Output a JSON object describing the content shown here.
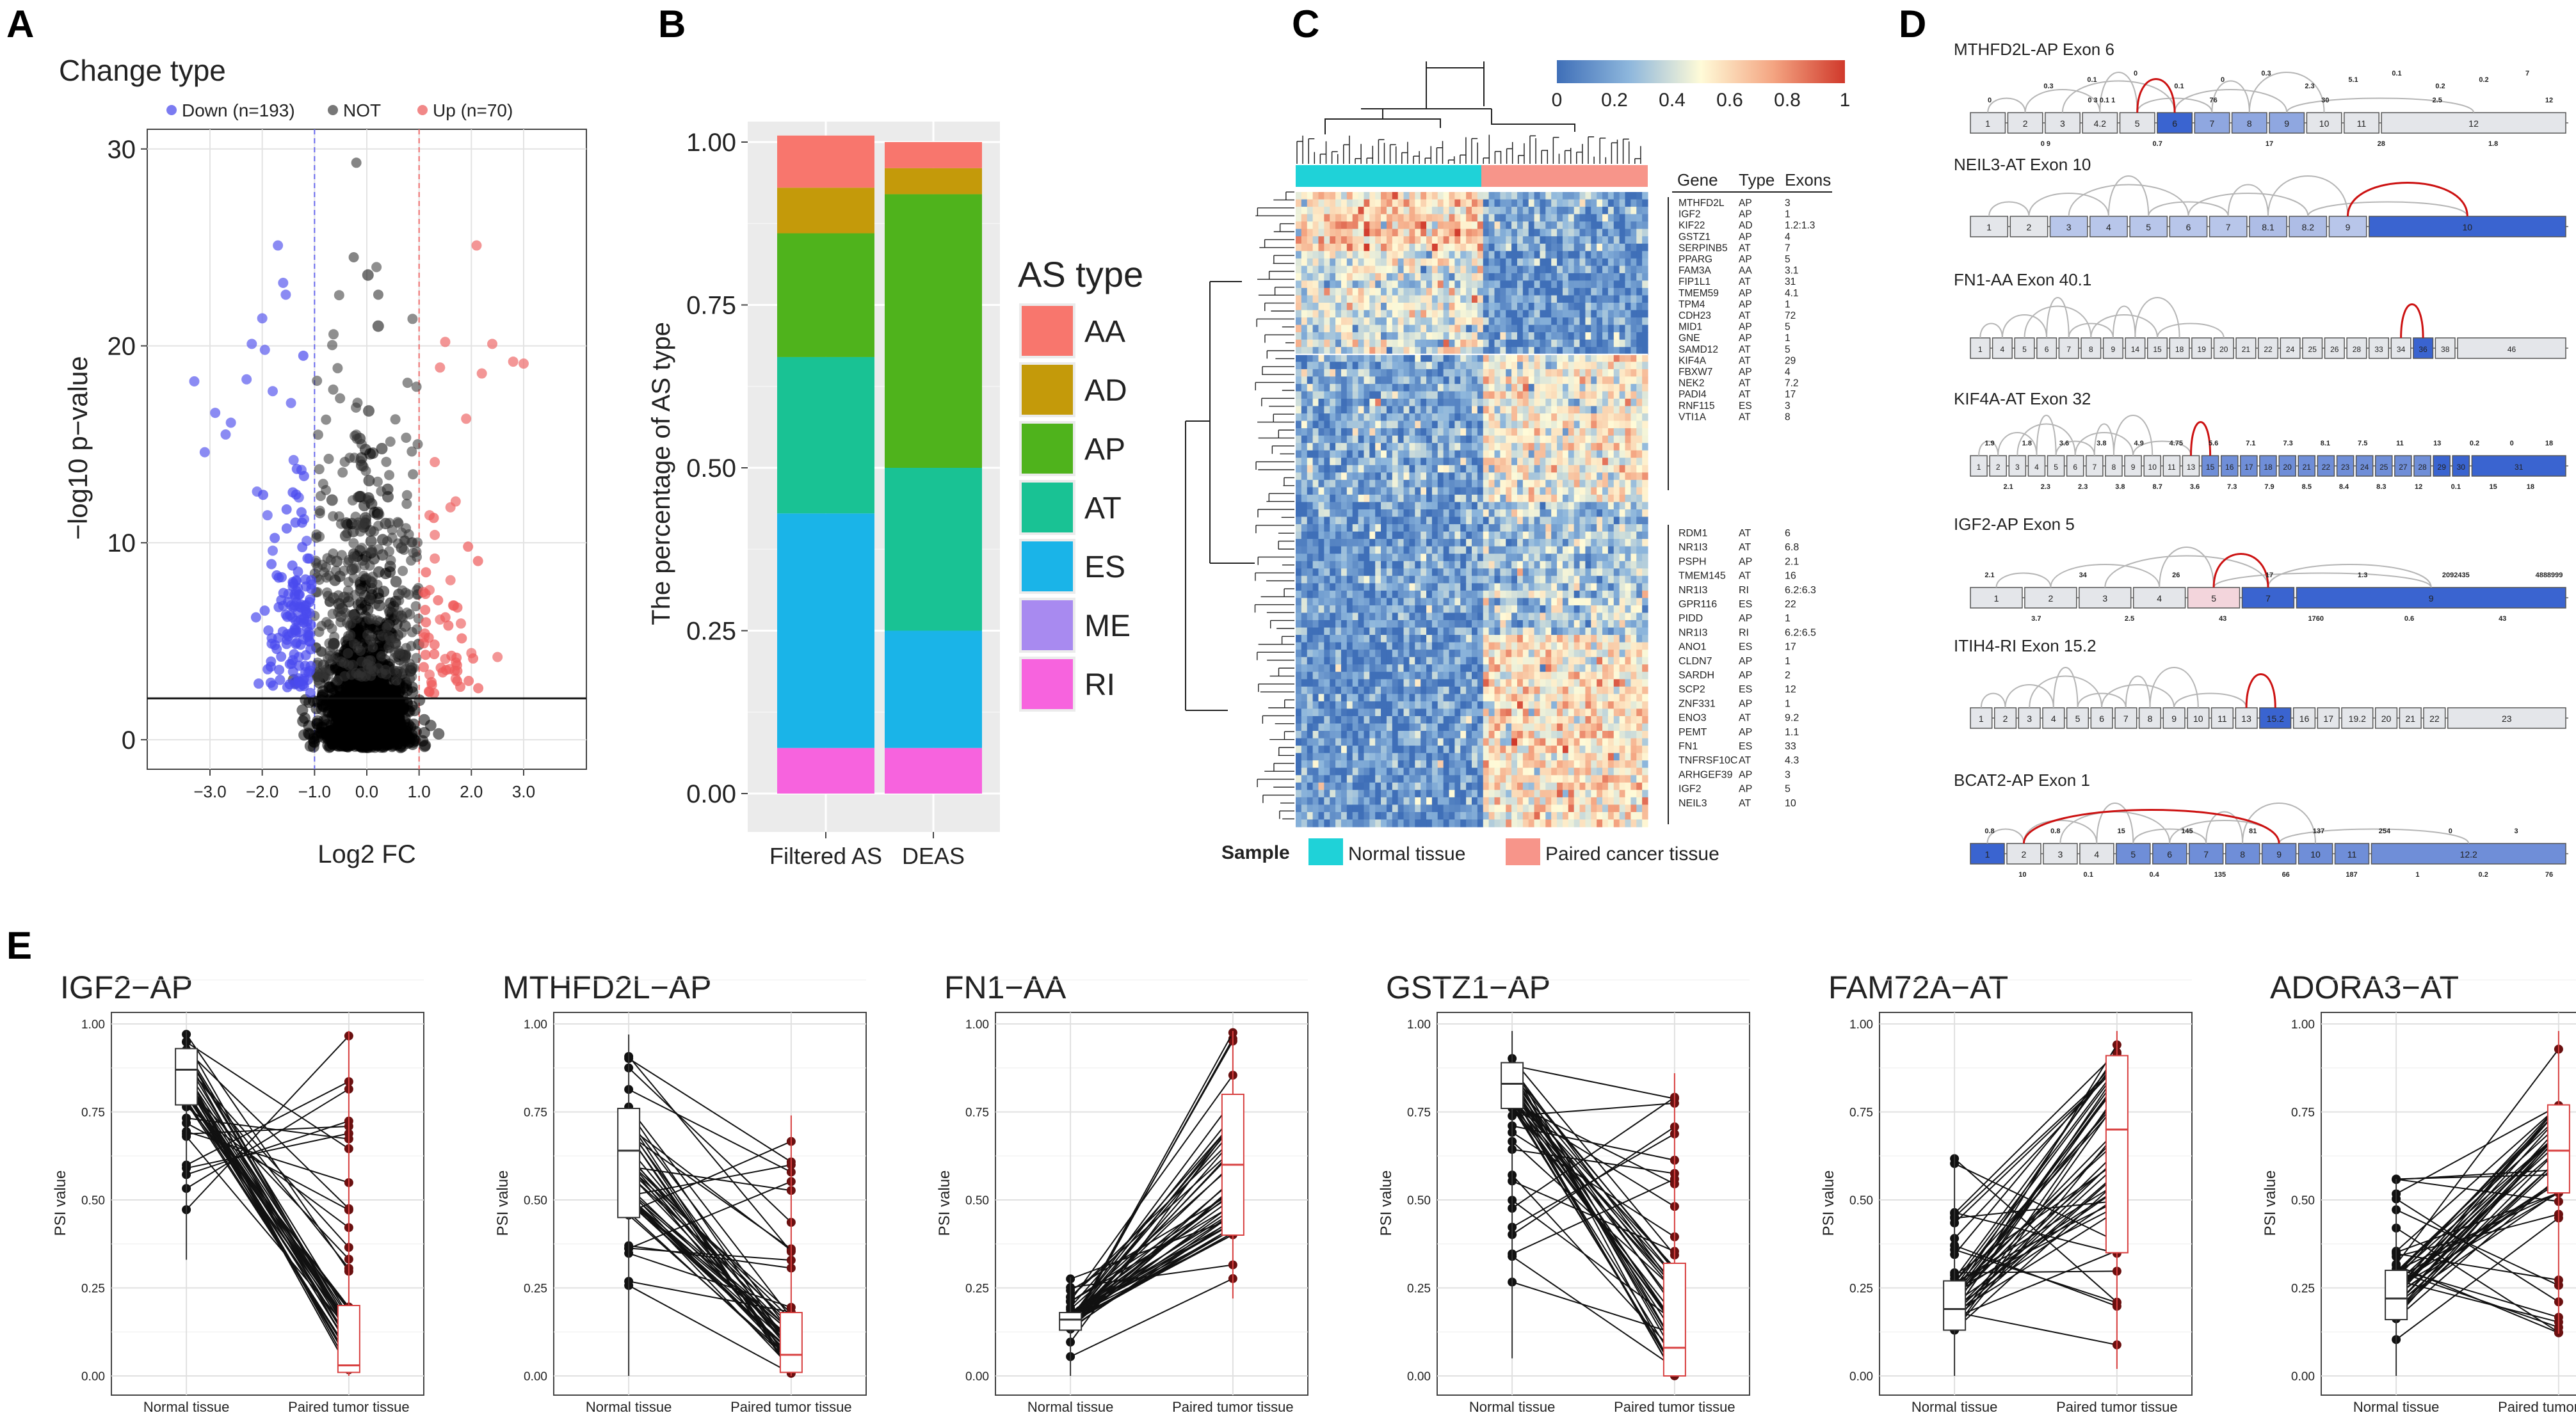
{
  "panels": {
    "a": "A",
    "b": "B",
    "c": "C",
    "d": "D",
    "e": "E"
  },
  "chart_data": [
    {
      "panel": "A",
      "type": "scatter",
      "title": "Change type",
      "xlabel": "Log2 FC",
      "ylabel": "−log10 p−value",
      "xlim": [
        -4.2,
        4.2
      ],
      "ylim": [
        -1.5,
        31
      ],
      "xticks": [
        -3.0,
        -2.0,
        -1.0,
        0.0,
        1.0,
        2.0,
        3.0
      ],
      "xtick_labels": [
        "−3.0",
        "−2.0",
        "−1.0",
        "0.0",
        "1.0",
        "2.0",
        "3.0"
      ],
      "yticks": [
        0,
        10,
        20,
        30
      ],
      "ytick_labels": [
        "0",
        "10",
        "20",
        "30"
      ],
      "threshold_fc": [
        -1.0,
        1.0
      ],
      "threshold_logp": 2.1,
      "legend": [
        {
          "label": "Down (n=193)",
          "color": "#5a5aee"
        },
        {
          "label": "NOT",
          "color": "#555555"
        },
        {
          "label": "Up (n=70)",
          "color": "#ee6a6a"
        }
      ],
      "down_points": [
        [
          -3.3,
          18.2
        ],
        [
          -3.1,
          14.6
        ],
        [
          -2.9,
          16.6
        ],
        [
          -2.7,
          15.5
        ],
        [
          -2.6,
          16.1
        ],
        [
          -2.3,
          18.3
        ],
        [
          -2.2,
          20.1
        ],
        [
          -2.0,
          21.4
        ],
        [
          -1.95,
          19.8
        ],
        [
          -1.8,
          17.7
        ],
        [
          -1.7,
          25.1
        ],
        [
          -1.6,
          23.2
        ],
        [
          -1.55,
          22.6
        ],
        [
          -1.45,
          17.1
        ],
        [
          -1.4,
          14.2
        ],
        [
          -1.3,
          12.3
        ],
        [
          -1.25,
          13.7
        ],
        [
          -1.2,
          11.2
        ],
        [
          -1.15,
          10.1
        ],
        [
          -1.1,
          9.2
        ],
        [
          -1.35,
          8.1
        ],
        [
          -1.5,
          7.4
        ],
        [
          -1.2,
          6.2
        ],
        [
          -1.1,
          5.3
        ],
        [
          -1.3,
          4.2
        ],
        [
          -1.2,
          3.1
        ],
        [
          -1.9,
          11.4
        ],
        [
          -2.1,
          12.6
        ],
        [
          -1.8,
          9.6
        ],
        [
          -1.6,
          6.8
        ]
      ],
      "up_points": [
        [
          1.2,
          11.4
        ],
        [
          1.3,
          14.1
        ],
        [
          1.4,
          18.9
        ],
        [
          1.5,
          20.2
        ],
        [
          1.6,
          11.8
        ],
        [
          1.7,
          12.1
        ],
        [
          1.9,
          16.3
        ],
        [
          2.1,
          25.1
        ],
        [
          2.2,
          18.6
        ],
        [
          2.4,
          20.1
        ],
        [
          2.8,
          19.2
        ],
        [
          3.0,
          19.1
        ],
        [
          1.3,
          9.2
        ],
        [
          1.2,
          7.6
        ],
        [
          1.4,
          6.1
        ],
        [
          1.1,
          5.2
        ],
        [
          1.6,
          8.1
        ],
        [
          1.8,
          5.9
        ],
        [
          1.5,
          4.1
        ],
        [
          1.2,
          3.3
        ],
        [
          2.0,
          4.4
        ],
        [
          1.7,
          3.1
        ],
        [
          2.5,
          4.2
        ],
        [
          1.3,
          10.4
        ]
      ],
      "not_points_note": "dense cloud of ~12000 non-significant events centred at 0"
    },
    {
      "panel": "B",
      "type": "bar",
      "stacked": true,
      "ylabel": "The percentage of AS type",
      "categories": [
        "Filtered AS",
        "DEAS"
      ],
      "ylim": [
        0,
        1
      ],
      "yticks": [
        0,
        0.25,
        0.5,
        0.75,
        1.0
      ],
      "ytick_labels": [
        "0.00",
        "0.25",
        "0.50",
        "0.75",
        "1.00"
      ],
      "legend_title": "AS type",
      "series": [
        {
          "name": "RI",
          "color": "#f763de",
          "values": [
            0.07,
            0.07
          ]
        },
        {
          "name": "ME",
          "color": "#a88af0",
          "values": [
            0.0,
            0.0
          ]
        },
        {
          "name": "ES",
          "color": "#1ab4e8",
          "values": [
            0.36,
            0.18
          ]
        },
        {
          "name": "AT",
          "color": "#19c294",
          "values": [
            0.24,
            0.25
          ]
        },
        {
          "name": "AP",
          "color": "#4fb31c",
          "values": [
            0.19,
            0.42
          ]
        },
        {
          "name": "AD",
          "color": "#c49a0a",
          "values": [
            0.07,
            0.04
          ]
        },
        {
          "name": "AA",
          "color": "#f8766d",
          "values": [
            0.08,
            0.04
          ]
        }
      ]
    },
    {
      "panel": "C",
      "type": "heatmap",
      "colorbar_ticks": [
        "0",
        "0.2",
        "0.4",
        "0.6",
        "0.8",
        "1"
      ],
      "col_groups": [
        {
          "label": "Normal tissue",
          "color": "#1fd2d8"
        },
        {
          "label": "Paired cancer tissue",
          "color": "#f7958a"
        }
      ],
      "sample_label": "Sample",
      "table_headers": [
        "Gene",
        "Type",
        "Exons"
      ],
      "genes_top": [
        [
          "MTHFD2L",
          "AP",
          "3"
        ],
        [
          "IGF2",
          "AP",
          "1"
        ],
        [
          "KIF22",
          "AD",
          "1.2:1.3"
        ],
        [
          "GSTZ1",
          "AP",
          "4"
        ],
        [
          "SERPINB5",
          "AT",
          "7"
        ],
        [
          "PPARG",
          "AP",
          "5"
        ],
        [
          "FAM3A",
          "AA",
          "3.1"
        ],
        [
          "FIP1L1",
          "AT",
          "31"
        ],
        [
          "TMEM59",
          "AP",
          "4.1"
        ],
        [
          "TPM4",
          "AP",
          "1"
        ],
        [
          "CDH23",
          "AT",
          "72"
        ],
        [
          "MID1",
          "AP",
          "5"
        ],
        [
          "GNE",
          "AP",
          "1"
        ],
        [
          "SAMD12",
          "AT",
          "5"
        ],
        [
          "KIF4A",
          "AT",
          "29"
        ],
        [
          "FBXW7",
          "AP",
          "4"
        ],
        [
          "NEK2",
          "AT",
          "7.2"
        ],
        [
          "PADI4",
          "AT",
          "17"
        ],
        [
          "RNF115",
          "ES",
          "3"
        ],
        [
          "VTI1A",
          "AT",
          "8"
        ]
      ],
      "genes_bottom": [
        [
          "RDM1",
          "AT",
          "6"
        ],
        [
          "NR1I3",
          "AT",
          "6.8"
        ],
        [
          "PSPH",
          "AP",
          "2.1"
        ],
        [
          "TMEM145",
          "AT",
          "16"
        ],
        [
          "NR1I3",
          "RI",
          "6.2:6.3"
        ],
        [
          "GPR116",
          "ES",
          "22"
        ],
        [
          "PIDD",
          "AP",
          "1"
        ],
        [
          "NR1I3",
          "RI",
          "6.2:6.5"
        ],
        [
          "ANO1",
          "ES",
          "17"
        ],
        [
          "CLDN7",
          "AP",
          "1"
        ],
        [
          "SARDH",
          "AP",
          "2"
        ],
        [
          "SCP2",
          "ES",
          "12"
        ],
        [
          "ZNF331",
          "AP",
          "1"
        ],
        [
          "ENO3",
          "AT",
          "9.2"
        ],
        [
          "PEMT",
          "AP",
          "1.1"
        ],
        [
          "FN1",
          "ES",
          "33"
        ],
        [
          "TNFRSF10C",
          "AT",
          "4.3"
        ],
        [
          "ARHGEF39",
          "AP",
          "3"
        ],
        [
          "IGF2",
          "AP",
          "5"
        ],
        [
          "NEIL3",
          "AT",
          "10"
        ]
      ]
    },
    {
      "panel": "E",
      "type": "line",
      "subtype": "paired boxplot",
      "ylabel": "PSI value",
      "categories": [
        "Normal tissue",
        "Paired tumor tissue"
      ],
      "ylim": [
        0,
        1
      ],
      "yticks": [
        "0.00",
        "0.25",
        "0.50",
        "0.75",
        "1.00"
      ],
      "plots": [
        {
          "title": "IGF2−AP",
          "normal": {
            "q1": 0.77,
            "med": 0.87,
            "q3": 0.93,
            "min": 0.33,
            "max": 0.98
          },
          "tumor": {
            "q1": 0.01,
            "med": 0.03,
            "q3": 0.2,
            "min": 0.0,
            "max": 0.98
          }
        },
        {
          "title": "MTHFD2L−AP",
          "normal": {
            "q1": 0.45,
            "med": 0.64,
            "q3": 0.76,
            "min": 0.0,
            "max": 0.97
          },
          "tumor": {
            "q1": 0.01,
            "med": 0.06,
            "q3": 0.18,
            "min": 0.0,
            "max": 0.74
          }
        },
        {
          "title": "FN1−AA",
          "normal": {
            "q1": 0.13,
            "med": 0.16,
            "q3": 0.18,
            "min": 0.0,
            "max": 0.28
          },
          "tumor": {
            "q1": 0.4,
            "med": 0.6,
            "q3": 0.8,
            "min": 0.22,
            "max": 0.98
          }
        },
        {
          "title": "GSTZ1−AP",
          "normal": {
            "q1": 0.76,
            "med": 0.83,
            "q3": 0.89,
            "min": 0.05,
            "max": 0.98
          },
          "tumor": {
            "q1": 0.0,
            "med": 0.08,
            "q3": 0.32,
            "min": 0.0,
            "max": 0.86
          }
        },
        {
          "title": "FAM72A−AT",
          "normal": {
            "q1": 0.13,
            "med": 0.19,
            "q3": 0.27,
            "min": 0.0,
            "max": 0.63
          },
          "tumor": {
            "q1": 0.35,
            "med": 0.7,
            "q3": 0.91,
            "min": 0.02,
            "max": 0.98
          }
        },
        {
          "title": "ADORA3−AT",
          "normal": {
            "q1": 0.16,
            "med": 0.22,
            "q3": 0.3,
            "min": 0.0,
            "max": 0.56
          },
          "tumor": {
            "q1": 0.52,
            "med": 0.64,
            "q3": 0.77,
            "min": 0.12,
            "max": 0.98
          }
        }
      ]
    }
  ],
  "panel_d": {
    "events": [
      {
        "title": "MTHFD2L-AP Exon 6",
        "exons": [
          "1",
          "2",
          "3",
          "4.2",
          "5",
          "6",
          "7",
          "8",
          "9",
          "10",
          "11",
          "12"
        ],
        "counts": [
          "0",
          "0 9",
          "0 3 0.1 1",
          "0.7",
          "76",
          "17",
          "30",
          "28",
          "2.5",
          "1.8",
          "12"
        ],
        "tops": [
          "0.3",
          "0.1",
          "0",
          "0.1",
          "0",
          "0.3",
          "2.3",
          "5.1",
          "0.1",
          "0.2",
          "0.2",
          "7"
        ]
      },
      {
        "title": "NEIL3-AT Exon 10",
        "exons": [
          "1",
          "2",
          "3",
          "4",
          "5",
          "6",
          "7",
          "8.1",
          "8.2",
          "9",
          "10"
        ]
      },
      {
        "title": "FN1-AA Exon 40.1",
        "exons": [
          "1",
          "4",
          "5",
          "6",
          "7",
          "8",
          "9",
          "14",
          "15",
          "18",
          "19",
          "20",
          "21",
          "22",
          "24",
          "25",
          "26",
          "28",
          "33",
          "34",
          "36",
          "38",
          "46"
        ]
      },
      {
        "title": "KIF4A-AT Exon 32",
        "exons": [
          "1",
          "2",
          "3",
          "4",
          "5",
          "6",
          "7",
          "8",
          "9",
          "10",
          "11",
          "13",
          "15",
          "16",
          "17",
          "18",
          "20",
          "21",
          "22",
          "23",
          "24",
          "25",
          "27",
          "28",
          "29",
          "30",
          "31"
        ],
        "counts": [
          "1.9",
          "2.1",
          "1.8",
          "2.3",
          "3.6",
          "2.3",
          "3.8",
          "3.8",
          "4.9",
          "8.7",
          "4.75",
          "3.6",
          "5.6",
          "7.3",
          "7.1",
          "7.9",
          "7.3",
          "8.5",
          "8.1",
          "8.4",
          "7.5",
          "8.3",
          "11",
          "12",
          "13",
          "0.1",
          "0.2",
          "15",
          "0",
          "18",
          "18"
        ]
      },
      {
        "title": "IGF2-AP Exon 5",
        "exons": [
          "1",
          "2",
          "3",
          "4",
          "5",
          "7",
          "9"
        ],
        "counts": [
          "2.1",
          "3.7",
          "34",
          "2.5",
          "26",
          "43",
          "17",
          "1760",
          "1.3",
          "0.6",
          "2092435",
          "43",
          "4888999"
        ]
      },
      {
        "title": "ITIH4-RI Exon 15.2",
        "exons": [
          "1",
          "2",
          "3",
          "4",
          "5",
          "6",
          "7",
          "8",
          "9",
          "10",
          "11",
          "13",
          "15.2",
          "16",
          "17",
          "19.2",
          "20",
          "21",
          "22",
          "23"
        ]
      },
      {
        "title": "BCAT2-AP Exon 1",
        "exons": [
          "1",
          "2",
          "3",
          "4",
          "5",
          "6",
          "7",
          "8",
          "9",
          "10",
          "11",
          "12.2"
        ],
        "counts": [
          "0.8",
          "10",
          "0.8",
          "0.1",
          "15",
          "0.4",
          "145",
          "135",
          "81",
          "66",
          "137",
          "187",
          "254",
          "1",
          "0",
          "0.2",
          "3",
          "76"
        ]
      }
    ]
  }
}
